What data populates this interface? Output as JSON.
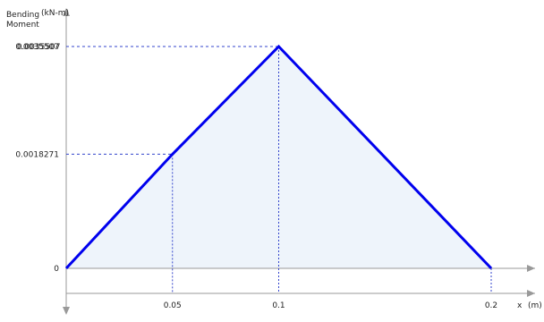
{
  "colors": {
    "line": "#0000ee",
    "fill": "#eef4fb",
    "guide": "#3344cc",
    "axis": "#999999"
  },
  "chart_data": {
    "type": "area",
    "ylabel": "Bending Moment",
    "ylabel_line1": "Bending",
    "ylabel_line2": "Moment",
    "yunit": "(kN-m)",
    "xlabel": "x",
    "xunit": "(m)",
    "x": [
      0,
      0.05,
      0.1,
      0.2
    ],
    "y": [
      0,
      0.0018271,
      0.0035507,
      0
    ],
    "xlim": [
      0,
      0.2
    ],
    "ylim": [
      0,
      0.0035507
    ],
    "x_tick_labels": [
      "0.05",
      "0.1",
      "0.2"
    ],
    "y_tick_labels": [
      "0",
      "0.0018271",
      "0.0035507",
      "0.0035507"
    ],
    "grid": false,
    "legend": "none"
  }
}
